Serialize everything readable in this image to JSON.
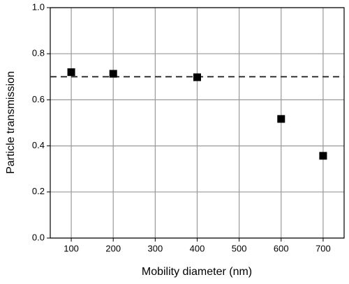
{
  "chart_data": {
    "type": "scatter",
    "x_label": "Mobility diameter (nm)",
    "y_label": "Particle transmission",
    "x": [
      100,
      200,
      400,
      600,
      700
    ],
    "values": [
      0.72,
      0.713,
      0.698,
      0.517,
      0.357
    ],
    "color": "#000000",
    "marker": "square",
    "xlim": [
      50,
      750
    ],
    "xticks": [
      100,
      200,
      300,
      400,
      500,
      600,
      700
    ],
    "ylim": [
      0,
      1
    ],
    "yticks": [
      {
        "value": 0,
        "label": "0.0"
      },
      0.2,
      0.4,
      0.6,
      0.8,
      {
        "value": 1,
        "label": "1.0"
      }
    ],
    "grid": true,
    "reference_line": {
      "y": 0.7,
      "style": "dashed",
      "color": "#333333"
    }
  }
}
